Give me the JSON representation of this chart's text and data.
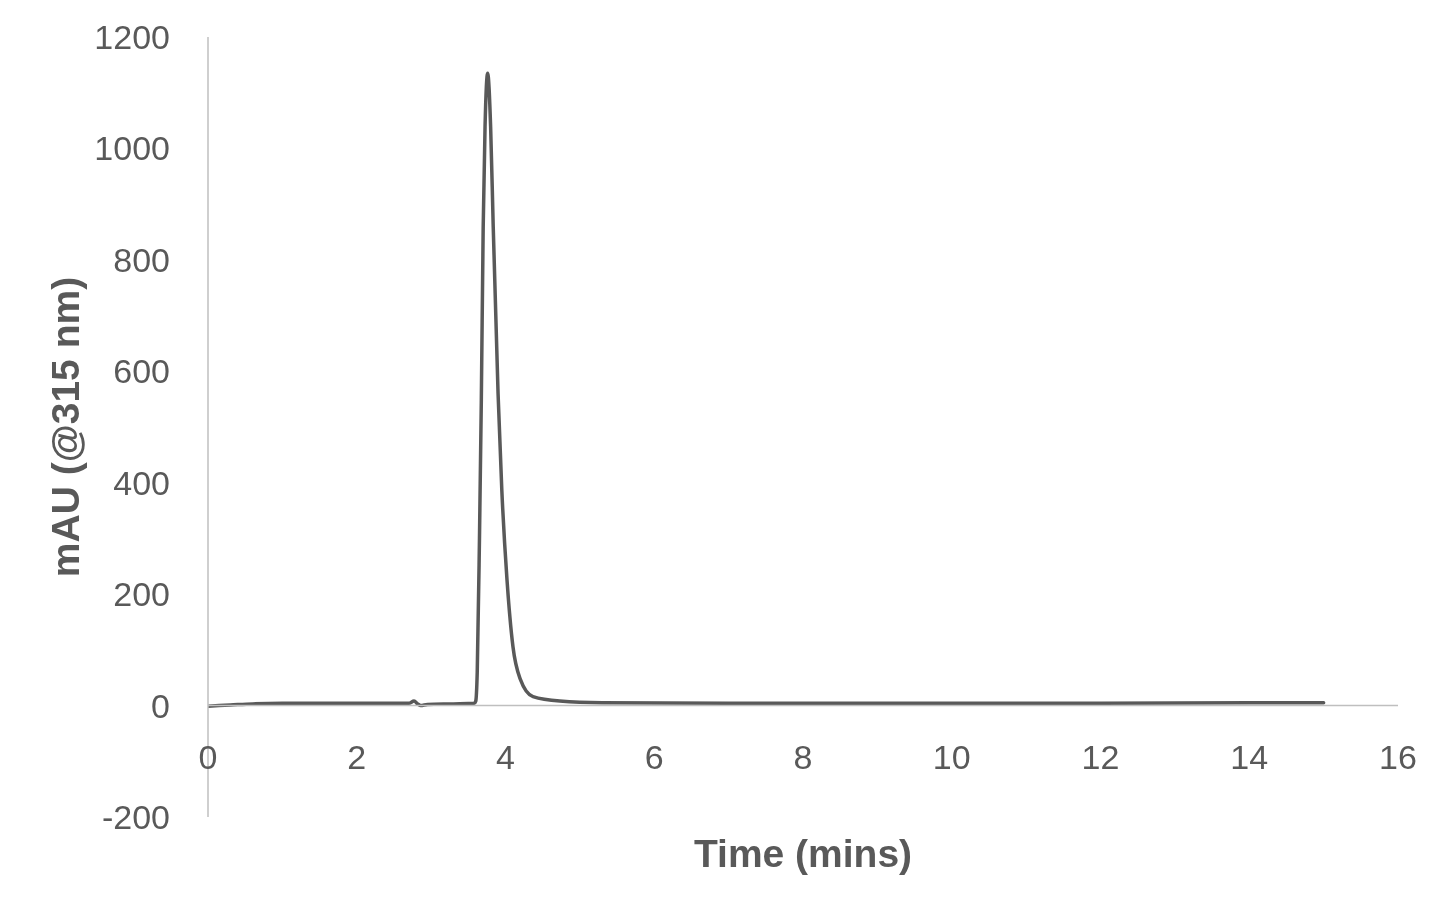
{
  "chart_data": {
    "type": "line",
    "xlabel": "Time (mins)",
    "ylabel": "mAU (@315 nm)",
    "x": [
      0,
      0.3,
      0.6,
      1.0,
      2.0,
      2.7,
      2.77,
      2.82,
      2.86,
      2.95,
      3.3,
      3.58,
      3.6,
      3.62,
      3.65,
      3.675,
      3.7,
      3.725,
      3.76,
      3.8,
      3.835,
      3.9,
      3.95,
      4.02,
      4.1,
      4.2,
      4.37,
      4.73,
      5.3,
      7,
      10,
      12,
      14,
      15
    ],
    "values": [
      -1,
      1,
      3,
      4,
      4,
      4,
      8,
      3,
      0,
      2,
      3,
      4,
      8,
      60,
      300,
      549,
      859,
      1039,
      1135,
      1039,
      859,
      560,
      388,
      226,
      106,
      47,
      16,
      8,
      5,
      4,
      4,
      4,
      5,
      5
    ],
    "color": "#595959",
    "marker": "none",
    "line_style": "solid",
    "xlim": [
      0,
      16
    ],
    "xticks": [
      0,
      2,
      4,
      6,
      8,
      10,
      12,
      14,
      16
    ],
    "ylim": [
      -200,
      1200
    ],
    "yticks": [
      -200,
      0,
      200,
      400,
      600,
      800,
      1000,
      1200
    ]
  }
}
